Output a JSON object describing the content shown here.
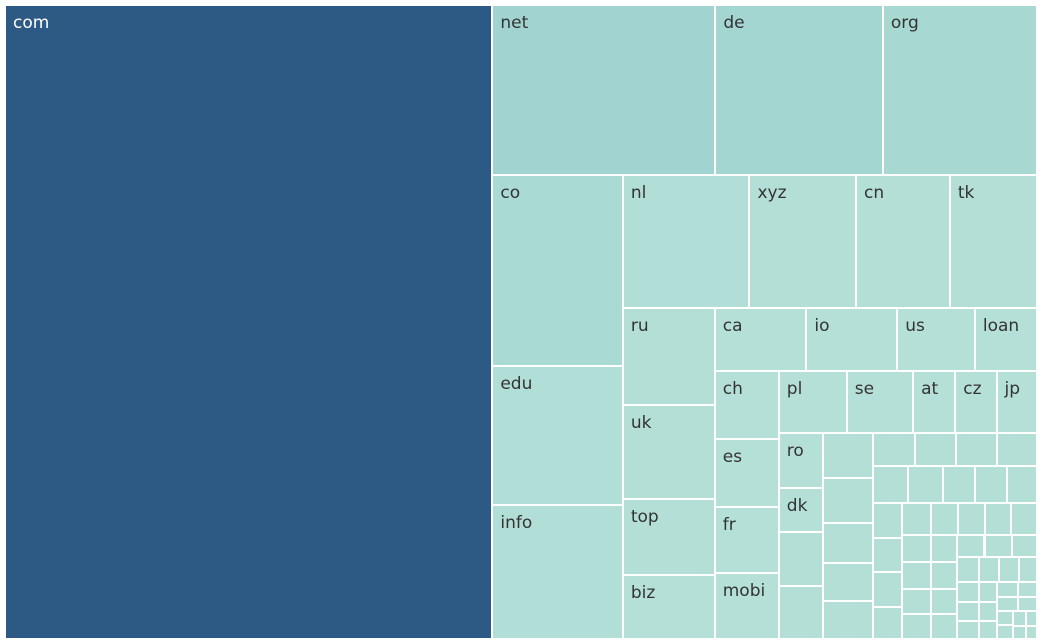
{
  "chart_data": {
    "type": "treemap",
    "title": "",
    "colors": {
      "dark": "#2d5985",
      "medium": "#a1d4d0",
      "light": "#b3dfd6",
      "border": "#ffffff",
      "label_dark": "#333333",
      "label_light": "#ffffff"
    },
    "items": [
      {
        "label": "com",
        "value": 312000,
        "color": "#2d5985"
      },
      {
        "label": "net",
        "value": 38200,
        "color": "#a1d4d0"
      },
      {
        "label": "de",
        "value": 28700,
        "color": "#a3d5d1"
      },
      {
        "label": "org",
        "value": 26400,
        "color": "#a7d8d2"
      },
      {
        "label": "co",
        "value": 25200,
        "color": "#a9dad4"
      },
      {
        "label": "edu",
        "value": 18300,
        "color": "#b1ded6"
      },
      {
        "label": "info",
        "value": 17700,
        "color": "#b1ded6"
      },
      {
        "label": "nl",
        "value": 17000,
        "color": "#b1ded6"
      },
      {
        "label": "xyz",
        "value": 14300,
        "color": "#b3dfd7"
      },
      {
        "label": "cn",
        "value": 12600,
        "color": "#b3dfd7"
      },
      {
        "label": "tk",
        "value": 11700,
        "color": "#b3dfd7"
      },
      {
        "label": "ru",
        "value": 9000,
        "color": "#b3dfd7"
      },
      {
        "label": "uk",
        "value": 8800,
        "color": "#b3dfd7"
      },
      {
        "label": "top",
        "value": 7000,
        "color": "#b3dfd7"
      },
      {
        "label": "biz",
        "value": 5950,
        "color": "#b5e0d8"
      },
      {
        "label": "ca",
        "value": 5900,
        "color": "#b5e0d8"
      },
      {
        "label": "io",
        "value": 5850,
        "color": "#b5e0d8"
      },
      {
        "label": "us",
        "value": 5000,
        "color": "#b5e0d8"
      },
      {
        "label": "loan",
        "value": 4000,
        "color": "#b5e0d8"
      },
      {
        "label": "ch",
        "value": 4400,
        "color": "#b5e0d8"
      },
      {
        "label": "es",
        "value": 4350,
        "color": "#b5e0d8"
      },
      {
        "label": "fr",
        "value": 4300,
        "color": "#b5e0d8"
      },
      {
        "label": "mobi",
        "value": 4250,
        "color": "#b5e0d8"
      },
      {
        "label": "pl",
        "value": 4200,
        "color": "#b5e0d8"
      },
      {
        "label": "se",
        "value": 4100,
        "color": "#b5e0d8"
      },
      {
        "label": "at",
        "value": 2600,
        "color": "#b5e0d8"
      },
      {
        "label": "cz",
        "value": 2550,
        "color": "#b5e0d8"
      },
      {
        "label": "jp",
        "value": 2500,
        "color": "#b5e0d8"
      },
      {
        "label": "ro",
        "value": 2450,
        "color": "#b5e0d8"
      },
      {
        "label": "dk",
        "value": 2000,
        "color": "#b5e0d8"
      }
    ],
    "unlabeled_values": [
      2400,
      2350,
      2300,
      2250,
      2000,
      1950,
      1900,
      1450,
      1400,
      1400,
      1350,
      1300,
      1250,
      1200,
      1150,
      1100,
      1050,
      1000,
      1000,
      950,
      950,
      900,
      900,
      850,
      850,
      800,
      800,
      750,
      750,
      700,
      700,
      650,
      650,
      600,
      600,
      550,
      550,
      500,
      500,
      450,
      450,
      400,
      400,
      380,
      360,
      340,
      320,
      300,
      280,
      260,
      240,
      220,
      200,
      180,
      160,
      140
    ]
  }
}
